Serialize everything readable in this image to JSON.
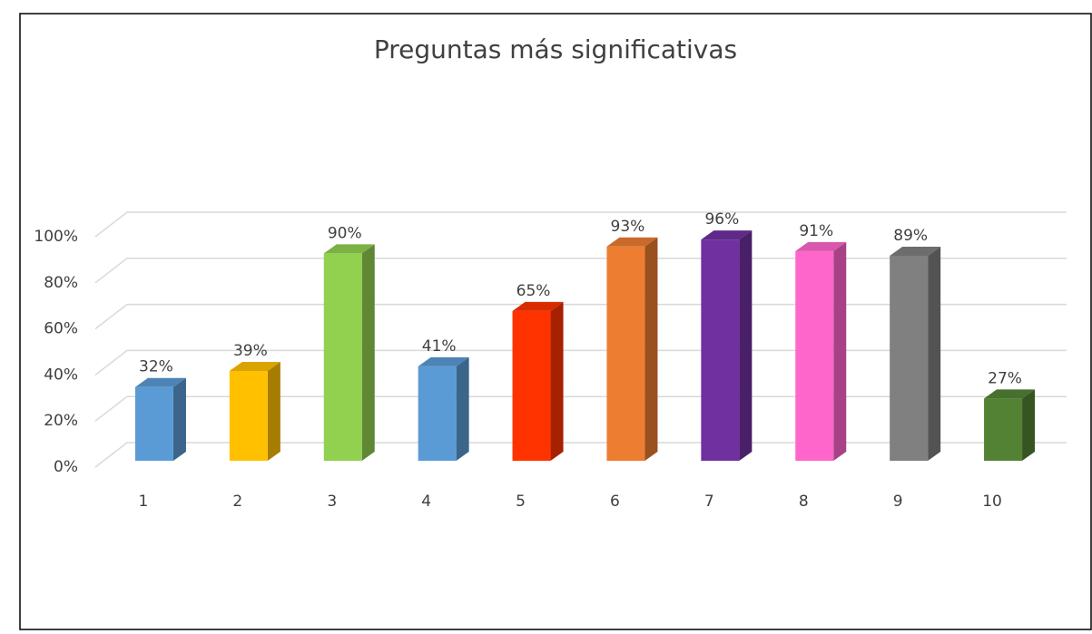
{
  "chart_data": {
    "type": "bar3d",
    "title": "Preguntas más significativas",
    "categories": [
      "1",
      "2",
      "3",
      "4",
      "5",
      "6",
      "7",
      "8",
      "9",
      "10"
    ],
    "values": [
      32,
      39,
      90,
      41,
      65,
      93,
      96,
      91,
      89,
      27
    ],
    "value_labels": [
      "32%",
      "39%",
      "90%",
      "41%",
      "65%",
      "93%",
      "96%",
      "91%",
      "89%",
      "27%"
    ],
    "colors": [
      "#5b9bd5",
      "#ffc000",
      "#92d050",
      "#5b9bd5",
      "#ff3300",
      "#ed7d31",
      "#7030a0",
      "#ff66cc",
      "#808080",
      "#548235"
    ],
    "ylim": [
      0,
      100
    ],
    "yticks": [
      {
        "value": 0,
        "label": "0%"
      },
      {
        "value": 20,
        "label": "20%"
      },
      {
        "value": 40,
        "label": "40%"
      },
      {
        "value": 60,
        "label": "60%"
      },
      {
        "value": 80,
        "label": "80%"
      },
      {
        "value": 100,
        "label": "100%"
      }
    ],
    "grid": true
  }
}
